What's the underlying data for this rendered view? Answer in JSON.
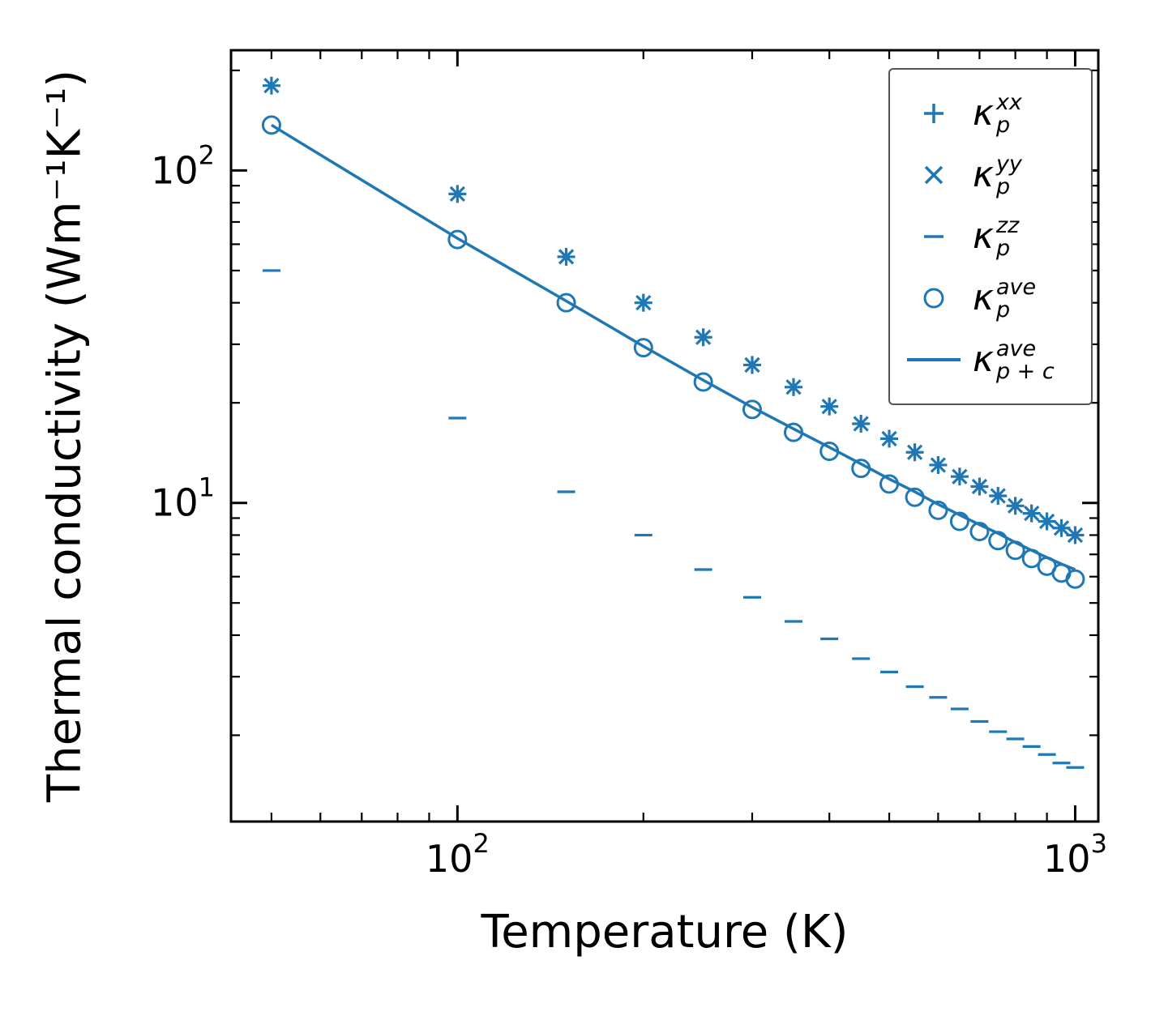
{
  "chart_data": {
    "type": "scatter",
    "xlabel": "Temperature (K)",
    "ylabel": "Thermal conductivity (Wm⁻¹K⁻¹)",
    "xscale": "log",
    "yscale": "log",
    "xlim": [
      43,
      1090
    ],
    "ylim": [
      1.1,
      230
    ],
    "grid": false,
    "color": "#1f77b4",
    "x_ticks": [
      {
        "value": 100,
        "base": "10",
        "exp": "2"
      },
      {
        "value": 1000,
        "base": "10",
        "exp": "3"
      }
    ],
    "y_ticks": [
      {
        "value": 10,
        "base": "10",
        "exp": "1"
      },
      {
        "value": 100,
        "base": "10",
        "exp": "2"
      }
    ],
    "x": [
      50,
      100,
      150,
      200,
      250,
      300,
      350,
      400,
      450,
      500,
      550,
      600,
      650,
      700,
      750,
      800,
      850,
      900,
      950,
      1000
    ],
    "series": [
      {
        "name": "kappa_p_xx",
        "marker": "plus",
        "values": [
          180,
          85,
          55,
          40,
          31.5,
          26,
          22.3,
          19.5,
          17.3,
          15.6,
          14.2,
          13.0,
          12.0,
          11.2,
          10.5,
          9.8,
          9.3,
          8.8,
          8.4,
          8.0
        ]
      },
      {
        "name": "kappa_p_yy",
        "marker": "x",
        "values": [
          180,
          85,
          55,
          40,
          31.5,
          26,
          22.3,
          19.5,
          17.3,
          15.6,
          14.2,
          13.0,
          12.0,
          11.2,
          10.5,
          9.8,
          9.3,
          8.8,
          8.4,
          8.0
        ]
      },
      {
        "name": "kappa_p_zz",
        "marker": "hline",
        "values": [
          50,
          18,
          10.8,
          8.0,
          6.3,
          5.2,
          4.4,
          3.9,
          3.4,
          3.1,
          2.8,
          2.6,
          2.4,
          2.2,
          2.05,
          1.95,
          1.85,
          1.75,
          1.65,
          1.6
        ]
      },
      {
        "name": "kappa_p_ave",
        "marker": "circle",
        "values": [
          137,
          62,
          40,
          29.3,
          23.1,
          19.1,
          16.3,
          14.3,
          12.7,
          11.4,
          10.4,
          9.5,
          8.8,
          8.2,
          7.7,
          7.2,
          6.8,
          6.45,
          6.15,
          5.9
        ]
      },
      {
        "name": "kappa_p_plus_c_ave",
        "marker": "line",
        "values": [
          137,
          62.5,
          40.5,
          29.6,
          23.4,
          19.4,
          16.7,
          14.7,
          13.1,
          11.8,
          10.8,
          9.9,
          9.2,
          8.6,
          8.1,
          7.6,
          7.2,
          6.85,
          6.55,
          6.3
        ]
      }
    ]
  },
  "legend": {
    "position": "upper right",
    "entries": [
      {
        "marker": "plus",
        "symbol": "κ",
        "sup": "xx",
        "sub": "p"
      },
      {
        "marker": "x",
        "symbol": "κ",
        "sup": "yy",
        "sub": "p"
      },
      {
        "marker": "hline",
        "symbol": "κ",
        "sup": "zz",
        "sub": "p"
      },
      {
        "marker": "circle",
        "symbol": "κ",
        "sup": "ave",
        "sub": "p"
      },
      {
        "marker": "line",
        "symbol": "κ",
        "sup": "ave",
        "sub": "p + c"
      }
    ]
  }
}
